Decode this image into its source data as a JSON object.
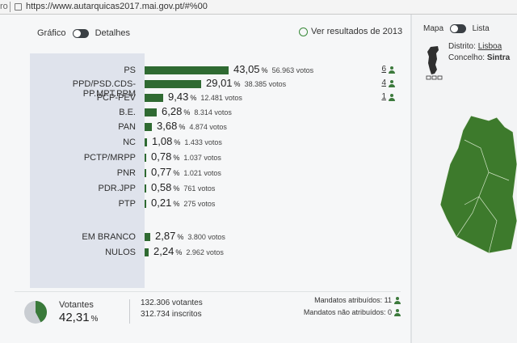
{
  "browser": {
    "back_fragment": "ro",
    "url": "https://www.autarquicas2017.mai.gov.pt/#%00"
  },
  "view_toggle": {
    "left_label": "Gráfico",
    "right_label": "Detalhes"
  },
  "history_link": {
    "label": "Ver resultados de 2013"
  },
  "results": [
    {
      "name": "PS",
      "pct": "43,05",
      "votes": "56.963 votos",
      "pct_value": 43.05,
      "seats": "6"
    },
    {
      "name": "PPD/PSD.CDS-PP.MPT.PPM",
      "pct": "29,01",
      "votes": "38.385 votos",
      "pct_value": 29.01,
      "seats": "4"
    },
    {
      "name": "PCP-PEV",
      "pct": "9,43",
      "votes": "12.481 votos",
      "pct_value": 9.43,
      "seats": "1"
    },
    {
      "name": "B.E.",
      "pct": "6,28",
      "votes": "8.314 votos",
      "pct_value": 6.28
    },
    {
      "name": "PAN",
      "pct": "3,68",
      "votes": "4.874 votos",
      "pct_value": 3.68
    },
    {
      "name": "NC",
      "pct": "1,08",
      "votes": "1.433 votos",
      "pct_value": 1.08
    },
    {
      "name": "PCTP/MRPP",
      "pct": "0,78",
      "votes": "1.037 votos",
      "pct_value": 0.78
    },
    {
      "name": "PNR",
      "pct": "0,77",
      "votes": "1.021 votos",
      "pct_value": 0.77
    },
    {
      "name": "PDR.JPP",
      "pct": "0,58",
      "votes": "761 votos",
      "pct_value": 0.58
    },
    {
      "name": "PTP",
      "pct": "0,21",
      "votes": "275 votos",
      "pct_value": 0.21
    }
  ],
  "blank_null": [
    {
      "name": "EM BRANCO",
      "pct": "2,87",
      "votes": "3.800 votos",
      "pct_value": 2.87
    },
    {
      "name": "NULOS",
      "pct": "2,24",
      "votes": "2.962 votos",
      "pct_value": 2.24
    }
  ],
  "percent_symbol": "%",
  "turnout": {
    "label": "Votantes",
    "pct": "42,31",
    "pct_value": 42.31,
    "voters": "132.306 votantes",
    "registered": "312.734 inscritos",
    "mandates_assigned": "Mandatos atribuídos: 11",
    "mandates_unassigned": "Mandatos não atribuídos: 0"
  },
  "map_panel": {
    "toggle_left": "Mapa",
    "toggle_right": "Lista",
    "district_label": "Distrito:",
    "district_value": "Lisboa",
    "council_label": "Concelho:",
    "council_value": "Sintra"
  },
  "colors": {
    "party_green": "#2f6a32",
    "map_green": "#3d7a2c",
    "panel": "#dfe3ec"
  },
  "icons": [
    "lock-icon",
    "history-icon",
    "person-icon",
    "portugal-mini-map",
    "pie-chart"
  ]
}
